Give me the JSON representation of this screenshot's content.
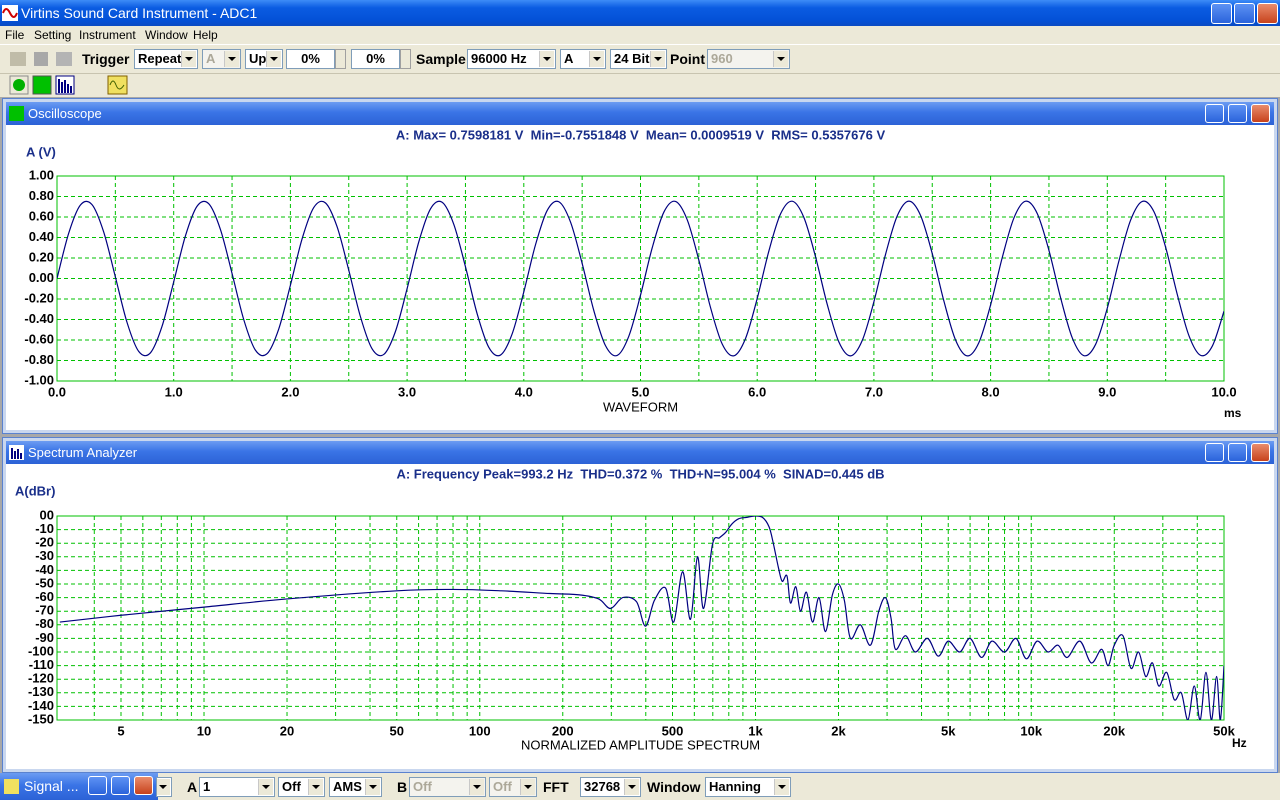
{
  "window": {
    "title": "Virtins Sound Card Instrument - ADC1"
  },
  "menu": [
    "File",
    "Setting",
    "Instrument",
    "Window",
    "Help"
  ],
  "toolbar": {
    "trigger_label": "Trigger",
    "trigger_mode": "Repeat",
    "trigger_channel": "A",
    "trigger_edge": "Up",
    "level_1": "0%",
    "level_2": "0%",
    "sample_label": "Sample",
    "sample_rate": "96000 Hz",
    "channel": "A",
    "bits": "24 Bit",
    "point_label": "Point",
    "points": "960"
  },
  "bottom_bar": {
    "signal_window": "Signal ...",
    "a_label": "A",
    "a_value": "1",
    "a_off": "Off",
    "a_mode": "AMS",
    "b_label": "B",
    "b_value": "Off",
    "b_off": "Off",
    "fft_label": "FFT",
    "fft_size": "32768",
    "window_label": "Window",
    "window_value": "Hanning"
  },
  "chart_data": [
    {
      "type": "line",
      "window_title": "Oscilloscope",
      "title": "A: Max= 0.7598181 V  Min=-0.7551848 V  Mean= 0.0009519 V  RMS= 0.5357676 V",
      "ylabel": "A (V)",
      "xlabel": "WAVEFORM",
      "xunit": "ms",
      "x": [
        0,
        0.1,
        0.2,
        0.3,
        0.4,
        0.5,
        0.6,
        0.7,
        0.8,
        0.9,
        1,
        1.1,
        1.2,
        1.3,
        1.4,
        1.5,
        1.6,
        1.7,
        1.8,
        1.9,
        2,
        2.1,
        2.2,
        2.3,
        2.4,
        2.5,
        2.6,
        2.7,
        2.8,
        2.9,
        3,
        3.1,
        3.2,
        3.3,
        3.4,
        3.5,
        3.6,
        3.7,
        3.8,
        3.9,
        4,
        4.1,
        4.2,
        4.3,
        4.4,
        4.5,
        4.6,
        4.7,
        4.8,
        4.9,
        5,
        5.1,
        5.2,
        5.3,
        5.4,
        5.5,
        5.6,
        5.7,
        5.8,
        5.9,
        6,
        6.1,
        6.2,
        6.3,
        6.4,
        6.5,
        6.6,
        6.7,
        6.8,
        6.9,
        7,
        7.1,
        7.2,
        7.3,
        7.4,
        7.5,
        7.6,
        7.7,
        7.8,
        7.9,
        8,
        8.1,
        8.2,
        8.3,
        8.4,
        8.5,
        8.6,
        8.7,
        8.8,
        8.9,
        9,
        9.1,
        9.2,
        9.3,
        9.4,
        9.5,
        9.6,
        9.7,
        9.8,
        9.9,
        10
      ],
      "series": [
        {
          "color": "#000080",
          "values": [
            0,
            0.441,
            0.716,
            0.721,
            0.454,
            0.016,
            -0.428,
            -0.711,
            -0.726,
            -0.467,
            -0.033,
            0.414,
            0.705,
            0.73,
            0.48,
            0.049,
            -0.4,
            -0.699,
            -0.734,
            -0.493,
            -0.066,
            0.386,
            0.692,
            0.738,
            0.505,
            0.082,
            -0.372,
            -0.686,
            -0.741,
            -0.517,
            -0.099,
            0.357,
            0.679,
            0.744,
            0.529,
            0.115,
            -0.343,
            -0.671,
            -0.747,
            -0.541,
            -0.131,
            0.328,
            0.663,
            0.749,
            0.552,
            0.147,
            -0.313,
            -0.655,
            -0.751,
            -0.563,
            -0.163,
            0.298,
            0.647,
            0.752,
            0.574,
            0.179,
            -0.283,
            -0.639,
            -0.754,
            -0.585,
            -0.195,
            0.268,
            0.63,
            0.754,
            0.595,
            0.211,
            -0.252,
            -0.62,
            -0.755,
            -0.605,
            -0.227,
            0.236,
            0.611,
            0.755,
            0.615,
            0.243,
            -0.221,
            -0.601,
            -0.755,
            -0.624,
            -0.258,
            0.205,
            0.591,
            0.754,
            0.633,
            0.274,
            -0.189,
            -0.58,
            -0.753,
            -0.642,
            -0.289,
            0.173,
            0.57,
            0.752,
            0.651,
            0.304,
            -0.157,
            -0.559,
            -0.75,
            -0.659,
            -0.319
          ]
        }
      ],
      "xlim": [
        0,
        10
      ],
      "ylim": [
        -1,
        1
      ],
      "xticks": [
        {
          "value": 0,
          "label": "0.0"
        },
        {
          "value": 1,
          "label": "1.0"
        },
        {
          "value": 2,
          "label": "2.0"
        },
        {
          "value": 3,
          "label": "3.0"
        },
        {
          "value": 4,
          "label": "4.0"
        },
        {
          "value": 5,
          "label": "5.0"
        },
        {
          "value": 6,
          "label": "6.0"
        },
        {
          "value": 7,
          "label": "7.0"
        },
        {
          "value": 8,
          "label": "8.0"
        },
        {
          "value": 9,
          "label": "9.0"
        },
        {
          "value": 10,
          "label": "10.0"
        }
      ],
      "xminorticks": [
        0.5,
        1.5,
        2.5,
        3.5,
        4.5,
        5.5,
        6.5,
        7.5,
        8.5,
        9.5
      ],
      "yticks": [
        {
          "value": 1,
          "label": "1.00"
        },
        {
          "value": 0.8,
          "label": "0.80"
        },
        {
          "value": 0.6,
          "label": "0.60"
        },
        {
          "value": 0.4,
          "label": "0.40"
        },
        {
          "value": 0.2,
          "label": "0.20"
        },
        {
          "value": 0,
          "label": "0.00"
        },
        {
          "value": -0.2,
          "label": "-0.20"
        },
        {
          "value": -0.4,
          "label": "-0.40"
        },
        {
          "value": -0.6,
          "label": "-0.60"
        },
        {
          "value": -0.8,
          "label": "-0.80"
        },
        {
          "value": -1,
          "label": "-1.00"
        }
      ],
      "grid": true,
      "grid_color": "#00c000"
    },
    {
      "type": "line",
      "window_title": "Spectrum Analyzer",
      "xscale": "log",
      "title": "A: Frequency Peak=993.2 Hz  THD=0.372 %  THD+N=95.004 %  SINAD=0.445 dB",
      "ylabel": "A(dBr)",
      "xlabel": "NORMALIZED AMPLITUDE SPECTRUM",
      "xunit": "Hz",
      "x": [
        3,
        5,
        10,
        20,
        50,
        80,
        120,
        180,
        230,
        270,
        298,
        330,
        370,
        399,
        430,
        472,
        505,
        544,
        581,
        616,
        648,
        698,
        740,
        780,
        820,
        870,
        930,
        993,
        1060,
        1120,
        1160,
        1211,
        1250,
        1300,
        1339,
        1400,
        1456,
        1530,
        1610,
        1700,
        1794,
        1900,
        2000,
        2100,
        2210,
        2400,
        2611,
        2800,
        2960,
        3100,
        3217,
        3500,
        3800,
        4200,
        4600,
        5000,
        5500,
        6000,
        6600,
        7200,
        8000,
        8800,
        9600,
        10500,
        11500,
        12500,
        13500,
        15000,
        16500,
        18000,
        19000,
        20000,
        21500,
        23000,
        24500,
        26000,
        27500,
        29000,
        31000,
        33000,
        35000,
        37000,
        39000,
        41000,
        43000,
        45000,
        47000,
        48500,
        50000
      ],
      "series": [
        {
          "color": "#000080",
          "values": [
            -78,
            -73,
            -67,
            -61,
            -55,
            -54,
            -55,
            -57,
            -58,
            -61,
            -68,
            -60,
            -63,
            -81,
            -62,
            -53,
            -78,
            -41,
            -76,
            -30,
            -68,
            -21,
            -16,
            -12,
            -6,
            -2,
            -1,
            0,
            -1,
            -8,
            -20,
            -38,
            -48,
            -44,
            -64,
            -52,
            -70,
            -56,
            -78,
            -60,
            -85,
            -58,
            -50,
            -62,
            -90,
            -80,
            -95,
            -70,
            -60,
            -75,
            -98,
            -88,
            -100,
            -90,
            -103,
            -92,
            -100,
            -90,
            -104,
            -92,
            -100,
            -90,
            -105,
            -92,
            -100,
            -95,
            -104,
            -92,
            -108,
            -98,
            -110,
            -95,
            -88,
            -112,
            -100,
            -118,
            -108,
            -125,
            -115,
            -135,
            -130,
            -150,
            -125,
            -150,
            -115,
            -150,
            -118,
            -150,
            -110
          ]
        }
      ],
      "xlim": [
        2.93,
        50000
      ],
      "ylim": [
        -150,
        0
      ],
      "xticks": [
        5,
        10,
        20,
        50,
        100,
        200,
        500,
        {
          "value": 1000,
          "label": "1k"
        },
        {
          "value": 2000,
          "label": "2k"
        },
        {
          "value": 5000,
          "label": "5k"
        },
        {
          "value": 10000,
          "label": "10k"
        },
        {
          "value": 20000,
          "label": "20k"
        },
        {
          "value": 50000,
          "label": "50k"
        }
      ],
      "xminorticks": [
        4,
        6,
        7,
        8,
        9,
        30,
        40,
        60,
        70,
        80,
        90,
        300,
        400,
        600,
        700,
        800,
        900,
        3000,
        4000,
        6000,
        7000,
        8000,
        9000,
        30000,
        40000
      ],
      "yticks": [
        {
          "value": 0,
          "label": "00"
        },
        -10,
        -20,
        -30,
        -40,
        -50,
        -60,
        -70,
        -80,
        -90,
        -100,
        -110,
        -120,
        -130,
        -140,
        -150
      ],
      "grid": true,
      "grid_color": "#00c000"
    }
  ]
}
